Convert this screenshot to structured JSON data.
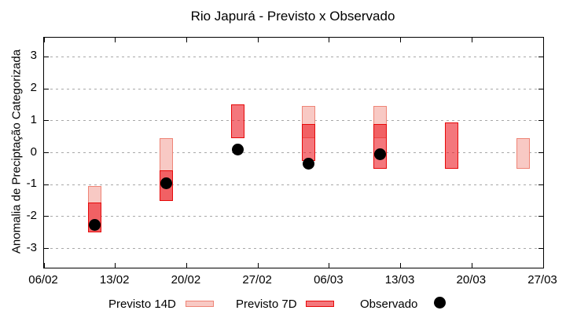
{
  "title": "Rio Japurá - Previsto x Observado",
  "chart_data": {
    "type": "bar",
    "subtype": "weekly-forecast-range-bars-with-observed-points",
    "title": "Rio Japurá - Previsto x Observado",
    "xlabel": "",
    "ylabel": "Anomalia de Preciptação Categorizada",
    "ylim": [
      -3.6,
      3.6
    ],
    "yticks": [
      3,
      2,
      1,
      0,
      -1,
      -2,
      -3
    ],
    "grid": "horizontal dotted lines at integer y values",
    "legend_position": "bottom",
    "x_total_days": 49,
    "xticks": [
      {
        "label": "06/02",
        "day": 0
      },
      {
        "label": "13/02",
        "day": 7
      },
      {
        "label": "20/02",
        "day": 14
      },
      {
        "label": "27/02",
        "day": 21
      },
      {
        "label": "06/03",
        "day": 28
      },
      {
        "label": "13/03",
        "day": 35
      },
      {
        "label": "20/03",
        "day": 42
      },
      {
        "label": "27/03",
        "day": 49
      }
    ],
    "series": [
      {
        "name": "Previsto 14D",
        "type": "range-bar"
      },
      {
        "name": "Previsto 7D",
        "type": "range-bar"
      },
      {
        "name": "Observado",
        "type": "point"
      }
    ],
    "bars": [
      {
        "date": "11/02",
        "day": 5,
        "previsto_14d": [
          -2.5,
          -1.05
        ],
        "previsto_7d": [
          -2.5,
          -1.55
        ],
        "observado": -2.25
      },
      {
        "date": "18/02",
        "day": 12,
        "previsto_14d": [
          -1.5,
          0.45
        ],
        "previsto_7d": [
          -1.5,
          -0.55
        ],
        "observado": -0.95
      },
      {
        "date": "25/02",
        "day": 19,
        "previsto_14d": null,
        "previsto_7d": [
          0.45,
          1.5
        ],
        "observado": 0.1
      },
      {
        "date": "04/03",
        "day": 26,
        "previsto_14d": [
          0.45,
          1.45
        ],
        "previsto_7d": [
          -0.25,
          0.9
        ],
        "observado": -0.35
      },
      {
        "date": "11/03",
        "day": 33,
        "previsto_14d": [
          0.45,
          1.45
        ],
        "previsto_7d": [
          -0.5,
          0.9
        ],
        "observado": -0.05
      },
      {
        "date": "18/03",
        "day": 40,
        "previsto_14d": null,
        "previsto_7d": [
          -0.5,
          0.95
        ],
        "observado": null
      },
      {
        "date": "25/03",
        "day": 47,
        "previsto_14d": [
          -0.5,
          0.45
        ],
        "previsto_7d": null,
        "observado": null
      }
    ]
  },
  "legend": {
    "previsto_14d_label": "Previsto 14D",
    "previsto_7d_label": "Previsto 7D",
    "observado_label": "Observado"
  },
  "colors": {
    "p14_fill": "#f8c9c4",
    "p14_border": "#ee8476",
    "p7_fill": "rgba(237,28,36,0.6)",
    "p7_border": "#e60909",
    "observed": "#000000",
    "grid": "#a8a8a8",
    "axis": "#000000"
  }
}
